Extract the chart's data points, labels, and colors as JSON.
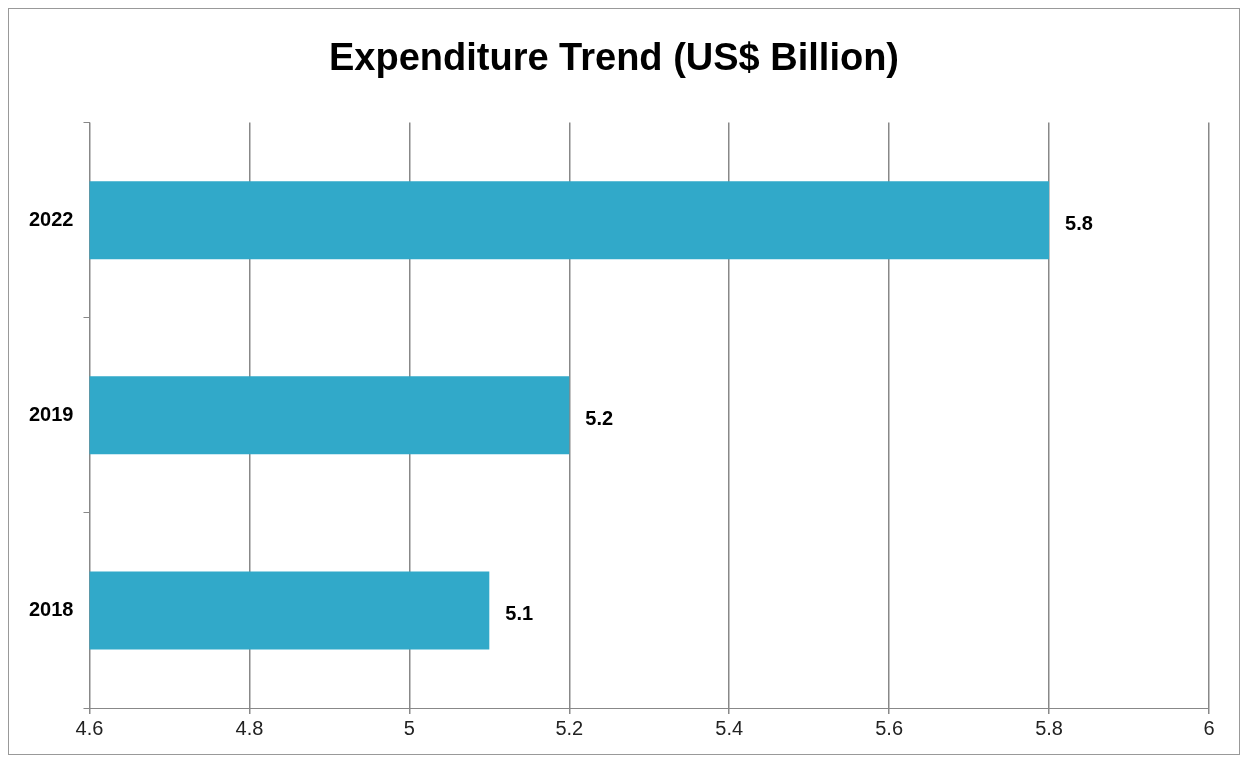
{
  "chart_data": {
    "type": "bar",
    "orientation": "horizontal",
    "title": "Expenditure Trend (US$ Billion)",
    "categories": [
      "2022",
      "2019",
      "2018"
    ],
    "values": [
      5.8,
      5.2,
      5.1
    ],
    "color": "#31a9c9",
    "xlim": [
      4.6,
      6
    ],
    "xticks": [
      4.6,
      4.8,
      5,
      5.2,
      5.4,
      5.6,
      5.8,
      6
    ],
    "grid": "x",
    "data_labels": true,
    "legend": false
  }
}
